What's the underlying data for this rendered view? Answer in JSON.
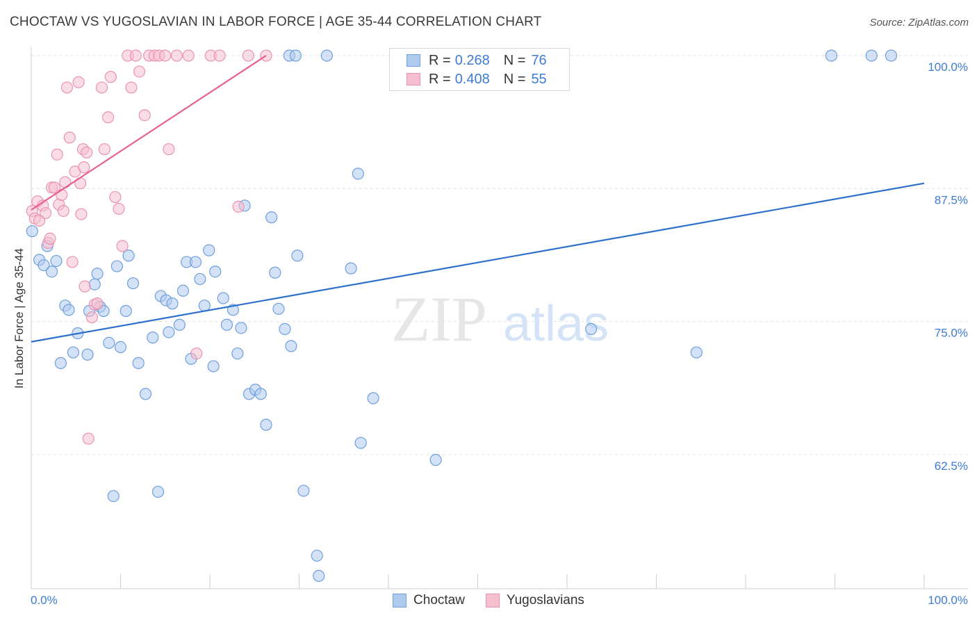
{
  "header": {
    "title": "CHOCTAW VS YUGOSLAVIAN IN LABOR FORCE | AGE 35-44 CORRELATION CHART",
    "source": "Source: ZipAtlas.com"
  },
  "watermark": {
    "zip": "ZIP",
    "atlas": "atlas"
  },
  "legend": {
    "rows": [
      {
        "r_label": "R =",
        "r_value": "0.268",
        "n_label": "N =",
        "n_value": "76"
      },
      {
        "r_label": "R =",
        "r_value": "0.408",
        "n_label": "N =",
        "n_value": "55"
      }
    ],
    "bottom": [
      "Choctaw",
      "Yugoslavians"
    ]
  },
  "colors": {
    "choctaw_fill": "#aecbee",
    "choctaw_stroke": "#6f9fdc",
    "choctaw_line": "#2c6fcc",
    "yugo_fill": "#f6bfd0",
    "yugo_stroke": "#e993b0",
    "yugo_line": "#e8608f",
    "tick_text": "#3d7bd4",
    "grid": "#e0e0e0"
  },
  "chart_data": {
    "type": "scatter",
    "title": "CHOCTAW VS YUGOSLAVIAN IN LABOR FORCE | AGE 35-44 CORRELATION CHART",
    "xlabel": "",
    "ylabel": "In Labor Force | Age 35-44",
    "xlim": [
      0,
      100
    ],
    "ylim": [
      51.0,
      100.5
    ],
    "x_tick_labels": [
      "0.0%",
      "100.0%"
    ],
    "y_ticks": [
      62.5,
      75.0,
      87.5,
      100.0
    ],
    "y_tick_labels": [
      "62.5%",
      "75.0%",
      "87.5%",
      "100.0%"
    ],
    "grid": true,
    "series": [
      {
        "name": "Choctaw",
        "trend": {
          "x": [
            0,
            100
          ],
          "y": [
            73.1,
            88.0
          ]
        },
        "points": [
          [
            0.1,
            83.5
          ],
          [
            0.9,
            80.8
          ],
          [
            1.4,
            80.3
          ],
          [
            1.8,
            82.1
          ],
          [
            2.3,
            79.7
          ],
          [
            2.8,
            80.7
          ],
          [
            3.3,
            71.1
          ],
          [
            3.8,
            76.5
          ],
          [
            4.2,
            76.1
          ],
          [
            4.7,
            72.1
          ],
          [
            5.2,
            73.9
          ],
          [
            6.3,
            71.9
          ],
          [
            6.5,
            76.0
          ],
          [
            7.1,
            78.5
          ],
          [
            7.4,
            79.5
          ],
          [
            7.7,
            76.4
          ],
          [
            8.1,
            76.0
          ],
          [
            8.7,
            73.0
          ],
          [
            9.2,
            58.6
          ],
          [
            9.6,
            80.2
          ],
          [
            10.0,
            72.6
          ],
          [
            10.6,
            76.0
          ],
          [
            10.9,
            81.2
          ],
          [
            11.4,
            78.6
          ],
          [
            12.0,
            71.1
          ],
          [
            12.8,
            68.2
          ],
          [
            13.6,
            73.5
          ],
          [
            14.2,
            59.0
          ],
          [
            14.5,
            77.4
          ],
          [
            15.1,
            77.0
          ],
          [
            15.4,
            74.0
          ],
          [
            15.8,
            76.7
          ],
          [
            16.6,
            74.7
          ],
          [
            17.0,
            77.9
          ],
          [
            17.4,
            80.6
          ],
          [
            17.9,
            71.5
          ],
          [
            18.4,
            80.6
          ],
          [
            18.9,
            79.0
          ],
          [
            19.4,
            76.5
          ],
          [
            19.9,
            81.7
          ],
          [
            20.4,
            70.8
          ],
          [
            20.6,
            79.7
          ],
          [
            21.5,
            77.2
          ],
          [
            21.9,
            74.7
          ],
          [
            22.6,
            76.1
          ],
          [
            23.1,
            72.0
          ],
          [
            23.5,
            74.4
          ],
          [
            23.9,
            85.9
          ],
          [
            24.4,
            68.2
          ],
          [
            25.1,
            68.6
          ],
          [
            25.7,
            68.2
          ],
          [
            26.3,
            65.3
          ],
          [
            26.9,
            84.8
          ],
          [
            27.3,
            79.6
          ],
          [
            27.7,
            76.2
          ],
          [
            28.4,
            74.3
          ],
          [
            29.1,
            72.7
          ],
          [
            29.8,
            81.2
          ],
          [
            30.5,
            59.1
          ],
          [
            32.0,
            53.0
          ],
          [
            32.2,
            51.1
          ],
          [
            33.1,
            100.0
          ],
          [
            35.8,
            80.0
          ],
          [
            36.6,
            88.9
          ],
          [
            36.9,
            63.6
          ],
          [
            38.3,
            67.8
          ],
          [
            45.3,
            62.0
          ],
          [
            52.7,
            100.0
          ],
          [
            55.4,
            100.0
          ],
          [
            62.7,
            74.3
          ],
          [
            74.5,
            72.1
          ],
          [
            89.6,
            100.0
          ],
          [
            94.1,
            100.0
          ],
          [
            96.3,
            100.0
          ],
          [
            28.9,
            100.0
          ],
          [
            29.6,
            100.0
          ]
        ]
      },
      {
        "name": "Yugoslavians",
        "trend": {
          "x": [
            0,
            26.3
          ],
          "y": [
            85.5,
            100.0
          ]
        },
        "points": [
          [
            0.1,
            85.4
          ],
          [
            0.4,
            84.7
          ],
          [
            0.7,
            86.3
          ],
          [
            0.9,
            84.5
          ],
          [
            1.3,
            85.9
          ],
          [
            1.6,
            85.2
          ],
          [
            1.9,
            82.4
          ],
          [
            2.1,
            82.8
          ],
          [
            2.3,
            87.6
          ],
          [
            2.6,
            87.6
          ],
          [
            2.9,
            90.7
          ],
          [
            3.1,
            86.0
          ],
          [
            3.4,
            86.9
          ],
          [
            3.6,
            85.4
          ],
          [
            3.8,
            88.1
          ],
          [
            4.0,
            97.0
          ],
          [
            4.3,
            92.3
          ],
          [
            4.6,
            80.6
          ],
          [
            4.9,
            89.1
          ],
          [
            5.3,
            97.5
          ],
          [
            5.5,
            88.0
          ],
          [
            5.8,
            91.2
          ],
          [
            5.9,
            89.5
          ],
          [
            6.2,
            90.9
          ],
          [
            6.8,
            75.4
          ],
          [
            7.1,
            76.6
          ],
          [
            7.4,
            76.7
          ],
          [
            7.9,
            97.0
          ],
          [
            8.2,
            91.2
          ],
          [
            8.6,
            94.2
          ],
          [
            8.9,
            98.0
          ],
          [
            9.4,
            86.7
          ],
          [
            9.8,
            85.6
          ],
          [
            10.2,
            82.1
          ],
          [
            10.8,
            100.0
          ],
          [
            11.2,
            97.0
          ],
          [
            11.7,
            100.0
          ],
          [
            12.1,
            98.5
          ],
          [
            12.7,
            94.4
          ],
          [
            13.2,
            100.0
          ],
          [
            13.8,
            100.0
          ],
          [
            14.3,
            100.0
          ],
          [
            15.0,
            100.0
          ],
          [
            15.4,
            91.2
          ],
          [
            16.3,
            100.0
          ],
          [
            17.6,
            100.0
          ],
          [
            18.5,
            72.0
          ],
          [
            20.1,
            100.0
          ],
          [
            21.1,
            100.0
          ],
          [
            23.2,
            85.8
          ],
          [
            24.3,
            100.0
          ],
          [
            26.3,
            100.0
          ],
          [
            6.0,
            78.3
          ],
          [
            6.4,
            64.0
          ],
          [
            5.6,
            85.1
          ]
        ]
      }
    ]
  }
}
